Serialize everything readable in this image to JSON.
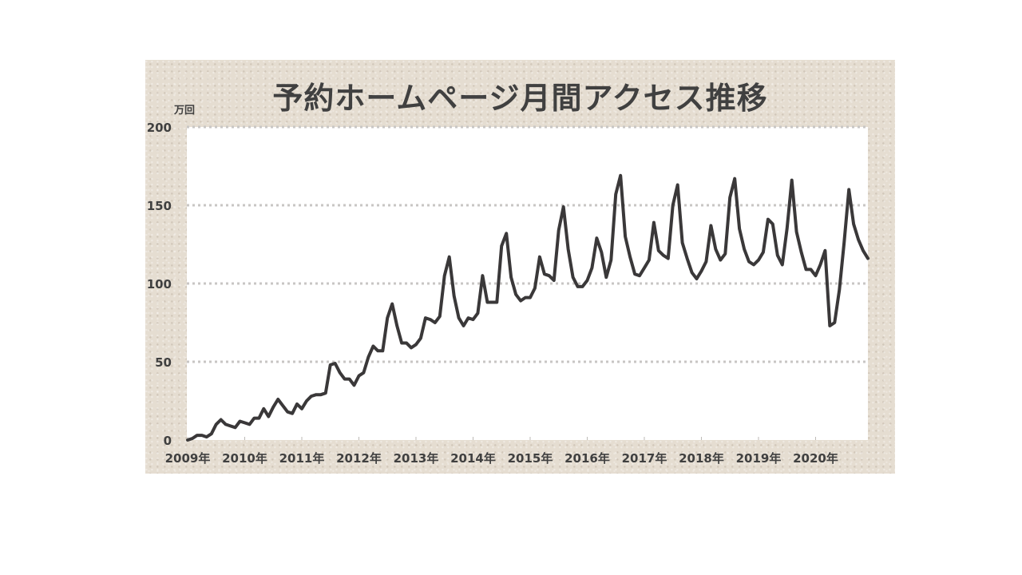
{
  "chart_data": {
    "type": "line",
    "title": "予約ホームページ月間アクセス推移",
    "unit": "万回",
    "ylim": [
      0,
      200
    ],
    "yticks": [
      0,
      50,
      100,
      150,
      200
    ],
    "xtick_labels": [
      "2009年",
      "2010年",
      "2011年",
      "2012年",
      "2013年",
      "2014年",
      "2015年",
      "2016年",
      "2017年",
      "2018年",
      "2019年",
      "2020年"
    ],
    "grid": "horizontal dotted",
    "line_color": "#3a3839",
    "x_start": "2009-01",
    "x_end": "2020-12",
    "frequency": "monthly",
    "values": [
      0,
      1,
      3,
      3,
      2,
      4,
      10,
      13,
      10,
      9,
      8,
      12,
      11,
      10,
      14,
      14,
      20,
      15,
      21,
      26,
      22,
      18,
      17,
      23,
      20,
      25,
      28,
      29,
      29,
      30,
      48,
      49,
      43,
      39,
      39,
      35,
      41,
      43,
      53,
      60,
      57,
      57,
      78,
      87,
      73,
      62,
      62,
      59,
      61,
      65,
      78,
      77,
      75,
      79,
      105,
      117,
      92,
      78,
      73,
      78,
      77,
      81,
      105,
      88,
      88,
      88,
      124,
      132,
      104,
      93,
      89,
      91,
      91,
      97,
      117,
      106,
      105,
      102,
      134,
      149,
      122,
      104,
      98,
      98,
      102,
      110,
      129,
      120,
      104,
      115,
      157,
      169,
      130,
      117,
      106,
      105,
      110,
      115,
      139,
      121,
      118,
      116,
      150,
      163,
      126,
      116,
      107,
      103,
      108,
      114,
      137,
      122,
      115,
      119,
      155,
      167,
      135,
      122,
      114,
      112,
      115,
      120,
      141,
      138,
      118,
      112,
      135,
      166,
      133,
      120,
      109,
      109,
      105,
      112,
      121,
      73,
      75,
      96,
      126,
      160,
      138,
      128,
      121,
      116
    ]
  }
}
